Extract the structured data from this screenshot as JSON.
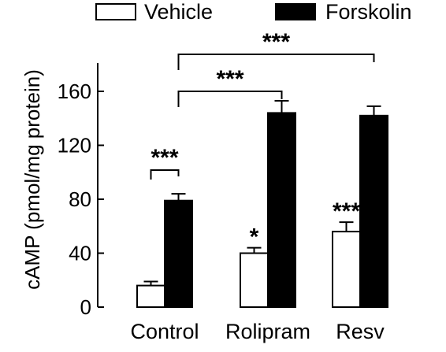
{
  "chart_data": {
    "type": "bar",
    "ylabel": "cAMP (pmol/mg protein)",
    "xlabel": "",
    "title": "",
    "ylim": [
      0,
      180
    ],
    "yticks": [
      0,
      40,
      80,
      120,
      160
    ],
    "categories": [
      "Control",
      "Rolipram",
      "Resv"
    ],
    "series": [
      {
        "name": "Vehicle",
        "fill": "#ffffff",
        "values": [
          16,
          40,
          56
        ],
        "errors": [
          3,
          4,
          7
        ]
      },
      {
        "name": "Forskolin",
        "fill": "#000000",
        "values": [
          79,
          144,
          142
        ],
        "errors": [
          5,
          9,
          7
        ]
      }
    ],
    "legend_position": "top",
    "bar_significance": [
      {
        "category": 1,
        "series": 0,
        "label": "*"
      },
      {
        "category": 2,
        "series": 0,
        "label": "***"
      }
    ],
    "brackets": [
      {
        "from": {
          "category": 0,
          "series": 0
        },
        "to": {
          "category": 0,
          "series": 1
        },
        "label": "***"
      },
      {
        "from": {
          "category": 0,
          "series": 1
        },
        "to": {
          "category": 1,
          "series": 1
        },
        "label": "***"
      },
      {
        "from": {
          "category": 0,
          "series": 1
        },
        "to": {
          "category": 2,
          "series": 1
        },
        "label": "***"
      }
    ]
  }
}
